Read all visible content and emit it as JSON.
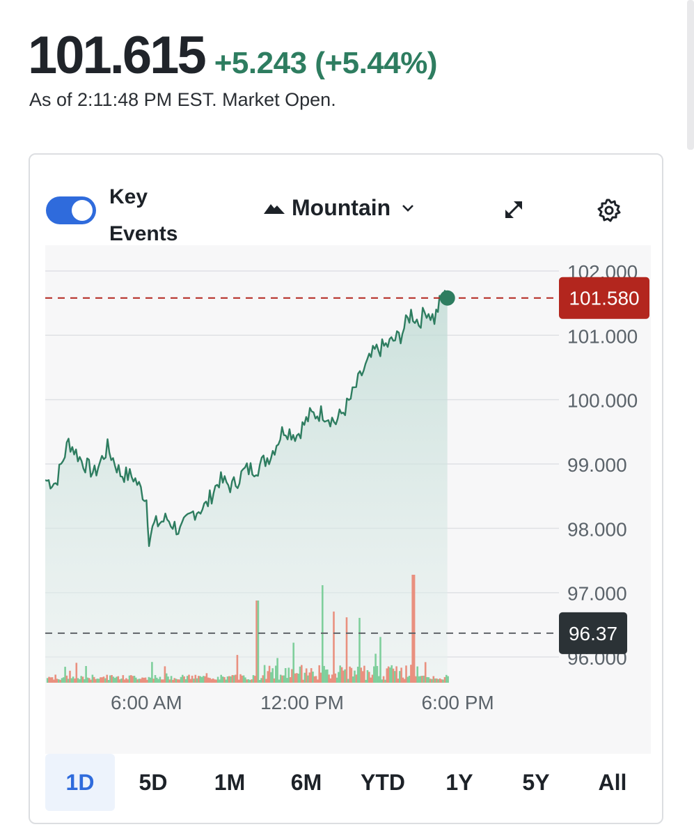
{
  "quote": {
    "price": "101.615",
    "change": "+5.243 (+5.44%)",
    "as_of": "As of 2:11:48 PM EST. Market Open."
  },
  "controls": {
    "key_events_label": "Key Events",
    "key_events_on": true,
    "chart_type_label": "Mountain",
    "icons": [
      "mountain-icon",
      "chevron-down-icon",
      "expand-icon",
      "gear-icon"
    ]
  },
  "colors": {
    "up": "#2e7d60",
    "down": "#e07a6a",
    "accent": "#2f6bdc",
    "current_price_tag": "#b3261e",
    "prev_close_tag": "#2b3236"
  },
  "chart_data": {
    "type": "area",
    "y_ticks": [
      "102.000",
      "101.000",
      "100.000",
      "99.000",
      "98.000",
      "97.000",
      "96.000"
    ],
    "y_tick_values": [
      102,
      101,
      100,
      99,
      98,
      97,
      96
    ],
    "ylim": [
      95.6,
      102.4
    ],
    "x_ticks": [
      "6:00 AM",
      "12:00 PM",
      "6:00 PM"
    ],
    "x_tick_hours": [
      6,
      12,
      18
    ],
    "x_range_hours": [
      2.1,
      21.9
    ],
    "current_price": 101.58,
    "current_price_label": "101.580",
    "previous_close": 96.37,
    "previous_close_label": "96.37",
    "price_anchors": [
      [
        2.1,
        98.75
      ],
      [
        2.5,
        98.7
      ],
      [
        3.0,
        99.35
      ],
      [
        3.5,
        99.05
      ],
      [
        4.0,
        98.85
      ],
      [
        4.5,
        99.25
      ],
      [
        5.0,
        98.85
      ],
      [
        5.5,
        98.8
      ],
      [
        6.0,
        98.45
      ],
      [
        6.1,
        97.85
      ],
      [
        6.3,
        98.05
      ],
      [
        6.8,
        98.15
      ],
      [
        7.3,
        97.95
      ],
      [
        7.8,
        98.25
      ],
      [
        8.3,
        98.35
      ],
      [
        8.8,
        98.75
      ],
      [
        9.3,
        98.65
      ],
      [
        9.8,
        98.9
      ],
      [
        10.3,
        98.95
      ],
      [
        10.8,
        99.15
      ],
      [
        11.3,
        99.55
      ],
      [
        11.8,
        99.45
      ],
      [
        12.3,
        99.75
      ],
      [
        12.8,
        99.8
      ],
      [
        13.3,
        99.65
      ],
      [
        13.8,
        99.95
      ],
      [
        14.3,
        100.4
      ],
      [
        14.8,
        100.75
      ],
      [
        15.3,
        100.85
      ],
      [
        15.8,
        101.0
      ],
      [
        16.2,
        101.35
      ],
      [
        16.5,
        101.2
      ],
      [
        16.8,
        101.4
      ],
      [
        17.1,
        101.25
      ],
      [
        17.3,
        101.5
      ],
      [
        17.5,
        101.6
      ],
      [
        17.6,
        101.58
      ]
    ],
    "volume_seed": 7
  },
  "ranges": [
    "1D",
    "5D",
    "1M",
    "6M",
    "YTD",
    "1Y",
    "5Y",
    "All"
  ],
  "active_range": "1D"
}
